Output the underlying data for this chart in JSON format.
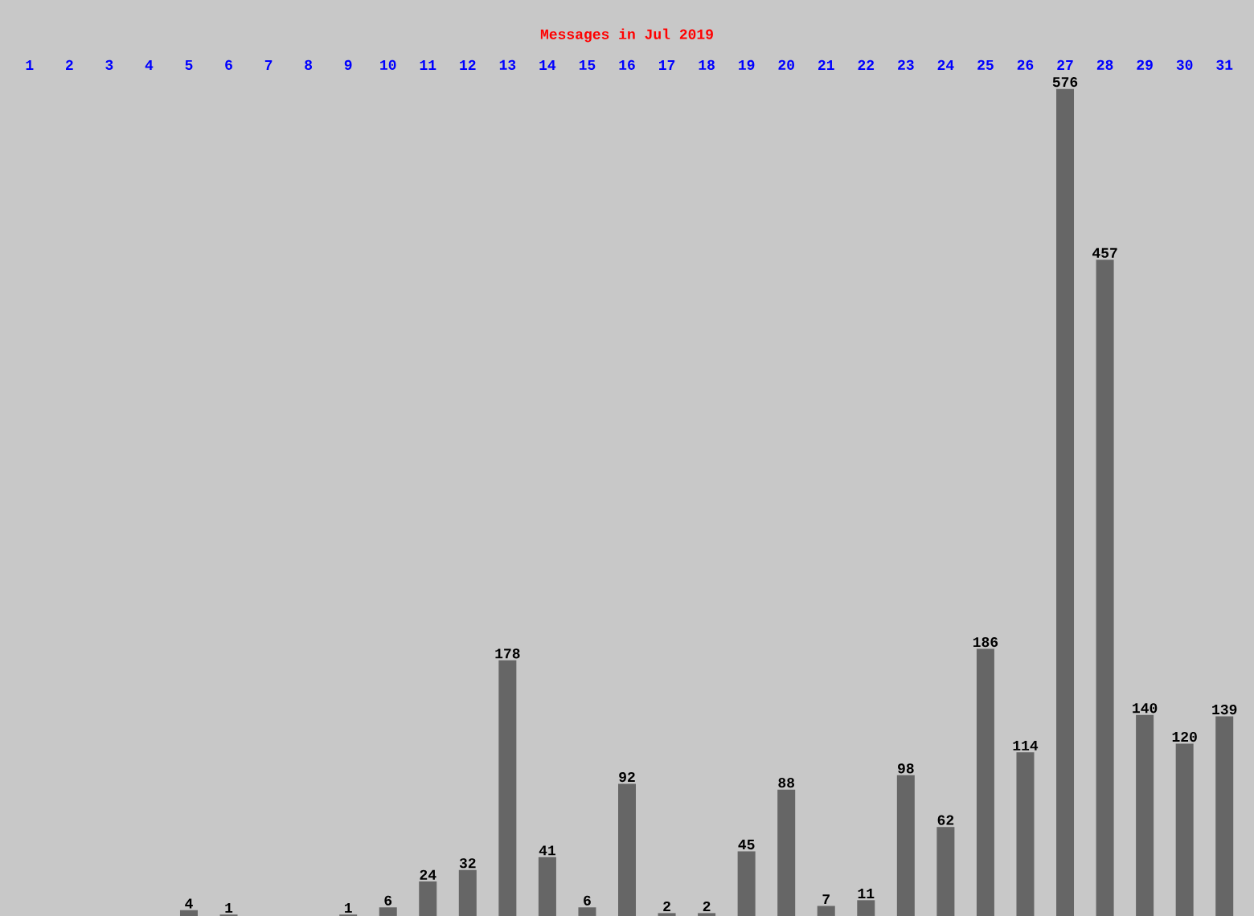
{
  "chart_data": {
    "type": "bar",
    "title": "Messages in Jul 2019",
    "categories": [
      "1",
      "2",
      "3",
      "4",
      "5",
      "6",
      "7",
      "8",
      "9",
      "10",
      "11",
      "12",
      "13",
      "14",
      "15",
      "16",
      "17",
      "18",
      "19",
      "20",
      "21",
      "22",
      "23",
      "24",
      "25",
      "26",
      "27",
      "28",
      "29",
      "30",
      "31"
    ],
    "values": [
      0,
      0,
      0,
      0,
      4,
      1,
      0,
      0,
      1,
      6,
      24,
      32,
      178,
      41,
      6,
      92,
      2,
      2,
      45,
      88,
      7,
      11,
      98,
      62,
      186,
      114,
      576,
      457,
      140,
      120,
      139
    ],
    "value_labels": [
      null,
      null,
      null,
      null,
      "4",
      "1",
      null,
      null,
      "1",
      "6",
      "24",
      "32",
      "178",
      "41",
      "6",
      "92",
      "2",
      "2",
      "45",
      "88",
      "7",
      "11",
      "98",
      "62",
      "186",
      "114",
      "576",
      "457",
      "140",
      "120",
      "139"
    ],
    "color": "#666666",
    "tick_labels": "x"
  }
}
